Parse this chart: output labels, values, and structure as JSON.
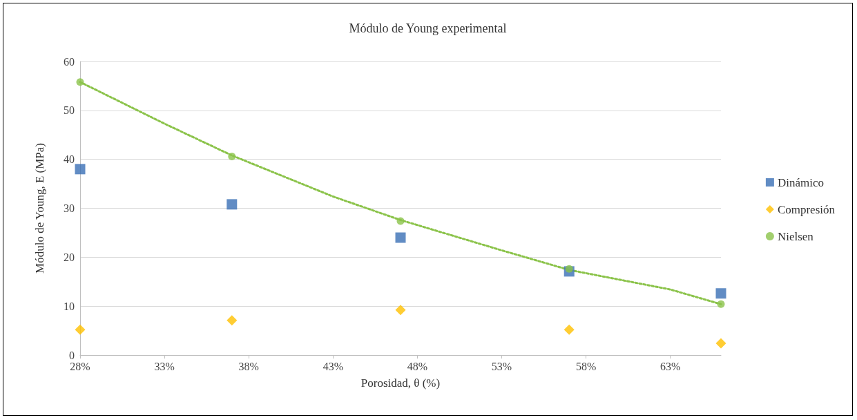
{
  "chart_data": {
    "type": "scatter",
    "title": "Módulo de Young experimental",
    "xlabel": "Porosidad, θ (%)",
    "ylabel": "Módulo de Young, E (MPa)",
    "x": [
      28,
      37,
      47,
      57,
      66
    ],
    "series": [
      {
        "name": "Dinámico",
        "color": "#3a6fb5",
        "marker": "square",
        "values": [
          38,
          30.8,
          24,
          17.1,
          12.6
        ]
      },
      {
        "name": "Compresión",
        "color": "#ffc000",
        "marker": "diamond",
        "values": [
          5.2,
          7.1,
          9.2,
          5.2,
          2.4
        ]
      },
      {
        "name": "Nielsen",
        "color": "#8bc34a",
        "marker": "circle",
        "values": [
          55.8,
          40.6,
          27.4,
          17.6,
          10.4
        ]
      },
      {
        "type": "line",
        "color": "#8bc34a",
        "line_style": "dotted",
        "marker": "none",
        "x": [
          28,
          33,
          37,
          43,
          47,
          53,
          57,
          63,
          66
        ],
        "values": [
          55.8,
          47.3,
          40.8,
          32.4,
          27.6,
          21.4,
          17.4,
          13.4,
          10.4
        ]
      }
    ],
    "xlim": [
      28,
      66
    ],
    "xticks": [
      {
        "value": 28,
        "label": "28%"
      },
      {
        "value": 33,
        "label": "33%"
      },
      {
        "value": 38,
        "label": "38%"
      },
      {
        "value": 43,
        "label": "43%"
      },
      {
        "value": 48,
        "label": "48%"
      },
      {
        "value": 53,
        "label": "53%"
      },
      {
        "value": 58,
        "label": "58%"
      },
      {
        "value": 63,
        "label": "63%"
      }
    ],
    "ylim": [
      0,
      60
    ],
    "yticks": [
      0,
      10,
      20,
      30,
      40,
      50,
      60
    ],
    "grid": "y",
    "legend": "right"
  }
}
